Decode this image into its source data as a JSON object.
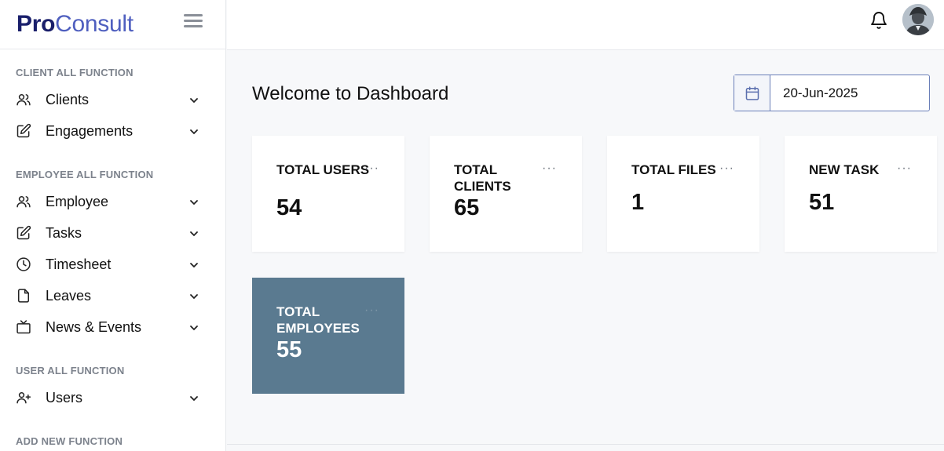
{
  "brand": {
    "part1": "Pro",
    "part2": "Consult"
  },
  "sidebar": {
    "sections": [
      {
        "title": "CLIENT ALL FUNCTION"
      },
      {
        "title": "EMPLOYEE ALL FUNCTION"
      },
      {
        "title": "USER ALL FUNCTION"
      },
      {
        "title": "ADD NEW FUNCTION"
      }
    ],
    "items": [
      {
        "label": "Clients",
        "icon": "users-icon"
      },
      {
        "label": "Engagements",
        "icon": "edit-icon"
      },
      {
        "label": "Employee",
        "icon": "users-icon"
      },
      {
        "label": "Tasks",
        "icon": "edit-icon"
      },
      {
        "label": "Timesheet",
        "icon": "clock-icon"
      },
      {
        "label": "Leaves",
        "icon": "file-icon"
      },
      {
        "label": "News & Events",
        "icon": "tv-icon"
      },
      {
        "label": "Users",
        "icon": "user-plus-icon"
      }
    ]
  },
  "main": {
    "title": "Welcome to Dashboard",
    "date": "20-Jun-2025"
  },
  "cards": [
    {
      "title": "TOTAL USERS",
      "value": "54"
    },
    {
      "title": "TOTAL CLIENTS",
      "value": "65"
    },
    {
      "title": "TOTAL FILES",
      "value": "1"
    },
    {
      "title": "NEW TASK",
      "value": "51"
    },
    {
      "title": "TOTAL EMPLOYEES",
      "value": "55"
    }
  ],
  "card_menu": "···",
  "colors": {
    "accent": "#4f5fbf",
    "brand_dark": "#1a1f6b",
    "highlight_card": "#5a7a90"
  }
}
